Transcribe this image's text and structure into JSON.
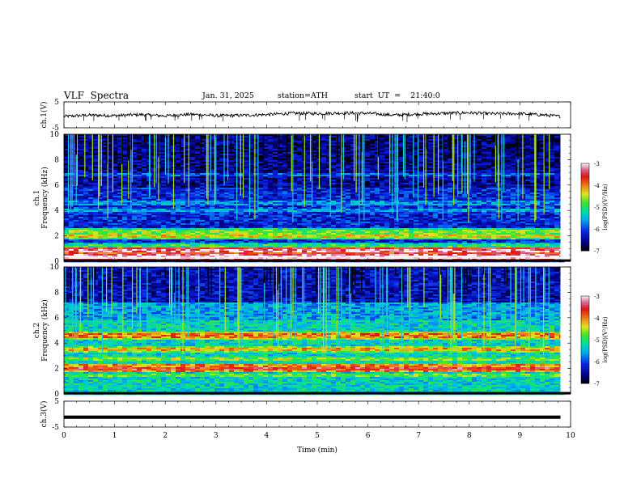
{
  "header": {
    "title": "VLF  Spectra",
    "date": "Jan. 31, 2025",
    "station": "station=ATH",
    "start": "start  UT  =    21:40:0"
  },
  "chart_data": [
    {
      "type": "line",
      "ylabel": "ch.1(V)",
      "ylim": [
        -5,
        5
      ],
      "yticks": [
        "5",
        "-5"
      ],
      "xlim": [
        0,
        10
      ],
      "x": [
        0,
        0.5,
        1,
        1.5,
        2,
        2.5,
        3,
        3.5,
        4,
        4.5,
        5,
        5.5,
        6,
        6.5,
        7,
        7.5,
        8,
        8.5,
        9,
        9.5,
        9.8
      ],
      "values": [
        -0.6,
        -0.1,
        -0.3,
        0.1,
        -0.4,
        0.2,
        -0.3,
        -0.2,
        0.1,
        0.6,
        0.5,
        0.7,
        0.6,
        -0.1,
        0.3,
        0.6,
        0.8,
        0.4,
        0.5,
        -0.1,
        -0.6
      ]
    },
    {
      "type": "heatmap",
      "ylabel": "ch.1\nFrequency  (kHz)",
      "ylim": [
        0,
        10
      ],
      "yticks": [
        "0",
        "2",
        "4",
        "6",
        "8",
        "10"
      ],
      "xlim": [
        0,
        10
      ],
      "colorbar": {
        "label": "log(PSD)(V²/Hz)",
        "range": [
          -7,
          -3
        ],
        "ticks": [
          "-3",
          "-4",
          "-5",
          "-6",
          "-7"
        ]
      },
      "bands_khz": [
        {
          "freq": 0.3,
          "level": -2.8
        },
        {
          "freq": 0.8,
          "level": -3.2
        },
        {
          "freq": 1.2,
          "level": -5.0
        },
        {
          "freq": 2.0,
          "level": -4.4
        },
        {
          "freq": 2.3,
          "level": -4.7
        },
        {
          "freq": 4.0,
          "level": -5.6
        },
        {
          "freq": 4.6,
          "level": -5.7
        },
        {
          "freq": 6.8,
          "level": -6.0
        }
      ],
      "background_level": -6.2
    },
    {
      "type": "heatmap",
      "ylabel": "ch.2\nFrequency  (kHz)",
      "ylim": [
        0,
        10
      ],
      "yticks": [
        "0",
        "2",
        "4",
        "6",
        "8",
        "10"
      ],
      "xlim": [
        0,
        10
      ],
      "colorbar": {
        "label": "log(PSD)(V²/Hz)",
        "range": [
          -7,
          -3
        ],
        "ticks": [
          "-3",
          "-4",
          "-5",
          "-6",
          "-7"
        ]
      },
      "bands_khz": [
        {
          "freq": 1.5,
          "level": -4.8
        },
        {
          "freq": 2.0,
          "level": -3.6
        },
        {
          "freq": 2.7,
          "level": -4.7
        },
        {
          "freq": 3.5,
          "level": -4.2
        },
        {
          "freq": 4.6,
          "level": -4.0
        },
        {
          "freq": 5.2,
          "level": -5.4
        }
      ],
      "background_level": -5.3
    },
    {
      "type": "line",
      "ylabel": "ch.3(V)",
      "ylim": [
        -5,
        5
      ],
      "yticks": [
        "5",
        "-5"
      ],
      "xlim": [
        0,
        10
      ],
      "xlabel": "Time  (min)",
      "xticks": [
        "0",
        "1",
        "2",
        "3",
        "4",
        "5",
        "6",
        "7",
        "8",
        "9",
        "10"
      ],
      "x": [
        0,
        9.8
      ],
      "values": [
        -1.2,
        -1.2
      ]
    }
  ]
}
